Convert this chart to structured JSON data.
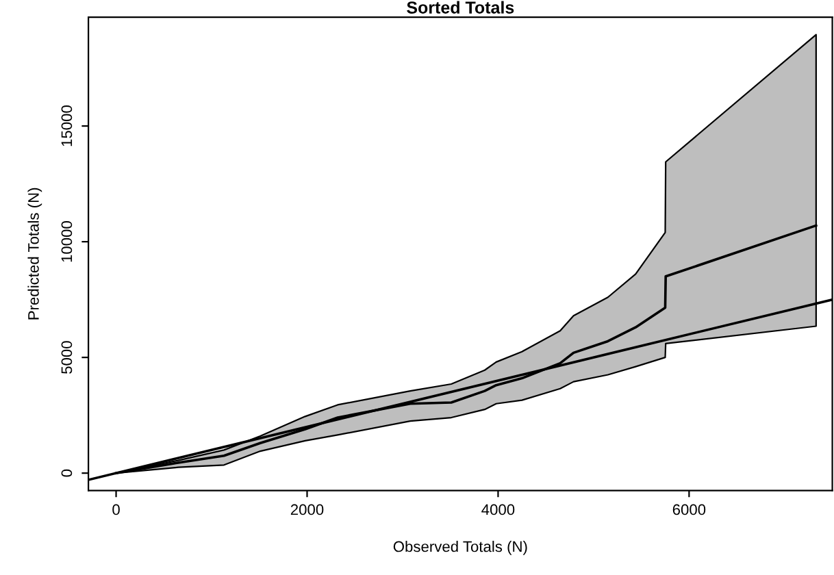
{
  "chart_data": {
    "type": "line",
    "title": "Sorted Totals",
    "xlabel": "Observed Totals (N)",
    "ylabel": "Predicted Totals (N)",
    "xlim": [
      -290,
      7500
    ],
    "ylim": [
      -750,
      19700
    ],
    "xticks": [
      0,
      2000,
      4000,
      6000
    ],
    "yticks": [
      0,
      5000,
      10000,
      15000
    ],
    "grid": false,
    "marker": "none",
    "line_style": "solid",
    "series": [
      {
        "color": "#000000",
        "x": [
          0,
          650,
          1130,
          1510,
          1980,
          2320,
          3080,
          3510,
          3860,
          3980,
          4250,
          4650,
          4790,
          5150,
          5440,
          5750,
          5755,
          7330
        ],
        "values": [
          0,
          450,
          750,
          1300,
          1900,
          2400,
          3000,
          3050,
          3550,
          3800,
          4100,
          4750,
          5200,
          5700,
          6300,
          7150,
          8500,
          10700
        ],
        "lower": [
          0,
          250,
          350,
          950,
          1400,
          1650,
          2250,
          2400,
          2750,
          3000,
          3150,
          3650,
          3950,
          4250,
          4600,
          5000,
          5600,
          6350
        ],
        "upper": [
          0,
          550,
          1000,
          1600,
          2450,
          2950,
          3550,
          3850,
          4450,
          4800,
          5250,
          6150,
          6800,
          7600,
          8600,
          10400,
          13450,
          18950
        ]
      },
      {
        "color": "#000000",
        "x": [
          -290,
          7500
        ],
        "values": [
          -290,
          7500
        ]
      }
    ]
  }
}
